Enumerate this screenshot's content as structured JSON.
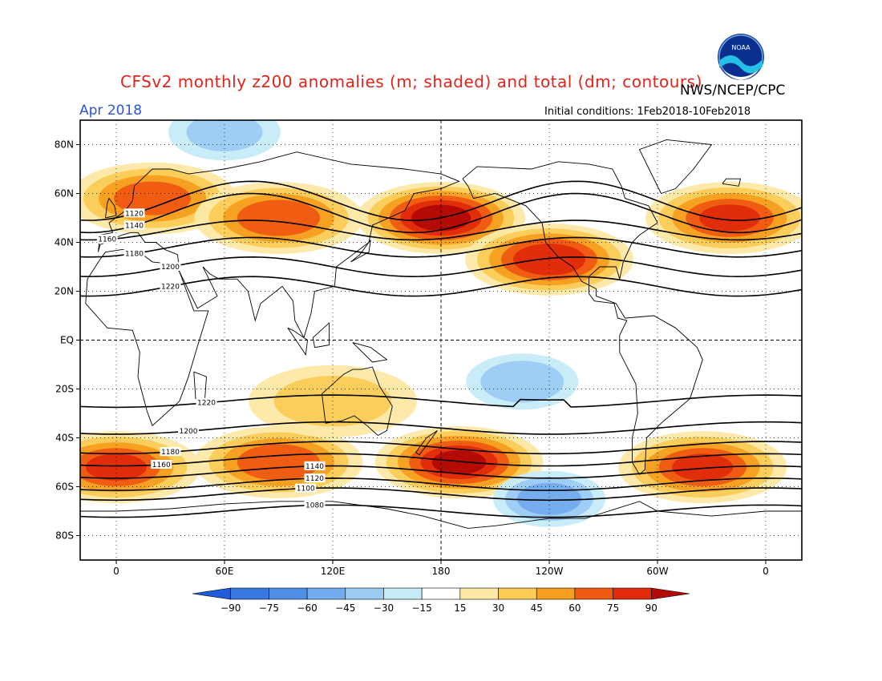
{
  "header": {
    "title": "CFSv2 monthly z200 anomalies (m; shaded) and total (dm; contours)",
    "month": "Apr 2018",
    "agency": "NWS/NCEP/CPC",
    "initial_conditions": "Initial conditions: 1Feb2018-10Feb2018",
    "logo_text": "NOAA"
  },
  "map": {
    "lat_labels": [
      "80N",
      "60N",
      "40N",
      "20N",
      "EQ",
      "20S",
      "40S",
      "60S",
      "80S"
    ],
    "lon_labels": [
      "0",
      "60E",
      "120E",
      "180",
      "120W",
      "60W",
      "0"
    ],
    "contours": [
      {
        "value": "1120",
        "lat": 57,
        "label_lon": 0
      },
      {
        "value": "1140",
        "lat": 52,
        "label_lon": 0
      },
      {
        "value": "1160",
        "lat": 45,
        "label_lon": -15
      },
      {
        "value": "1180",
        "lat": 38,
        "label_lon": 0
      },
      {
        "value": "1200",
        "lat": 30,
        "label_lon": 20
      },
      {
        "value": "1220",
        "lat": 22,
        "label_lon": 20
      },
      {
        "value": "1220",
        "lat": -25,
        "label_lon": 40
      },
      {
        "value": "1200",
        "lat": -36,
        "label_lon": 30
      },
      {
        "value": "1180",
        "lat": -44,
        "label_lon": 20
      },
      {
        "value": "1160",
        "lat": -49,
        "label_lon": 15
      },
      {
        "value": "1140",
        "lat": -54,
        "label_lon": 100
      },
      {
        "value": "1120",
        "lat": -59,
        "label_lon": 100
      },
      {
        "value": "1100",
        "lat": -63,
        "label_lon": 95
      },
      {
        "value": "1080",
        "lat": -70,
        "label_lon": 100
      }
    ],
    "anomalies": [
      {
        "lon": 20,
        "lat": 58,
        "value": 65
      },
      {
        "lon": 90,
        "lat": 50,
        "value": 70
      },
      {
        "lon": 180,
        "lat": 50,
        "value": 95
      },
      {
        "lon": 240,
        "lat": 33,
        "value": 85
      },
      {
        "lon": 340,
        "lat": 50,
        "value": 75
      },
      {
        "lon": 190,
        "lat": -50,
        "value": 90
      },
      {
        "lon": 325,
        "lat": -52,
        "value": 75
      },
      {
        "lon": 90,
        "lat": -50,
        "value": 70
      },
      {
        "lon": 0,
        "lat": -52,
        "value": 75
      },
      {
        "lon": 120,
        "lat": -25,
        "value": 35
      },
      {
        "lon": 225,
        "lat": -17,
        "value": -40
      },
      {
        "lon": 240,
        "lat": -65,
        "value": -50
      },
      {
        "lon": 60,
        "lat": 85,
        "value": -30
      }
    ]
  },
  "legend": {
    "values": [
      "-90",
      "-75",
      "-60",
      "-45",
      "-30",
      "-15",
      "15",
      "30",
      "45",
      "60",
      "75",
      "90"
    ],
    "colors": [
      "#1e5fd9",
      "#3779e0",
      "#4f8fe6",
      "#74abee",
      "#9ccbf4",
      "#c6ecf8",
      "#ffffff",
      "#fde9a6",
      "#fbcb55",
      "#f59e1f",
      "#ef5a12",
      "#e02a0b",
      "#b20a05"
    ]
  }
}
